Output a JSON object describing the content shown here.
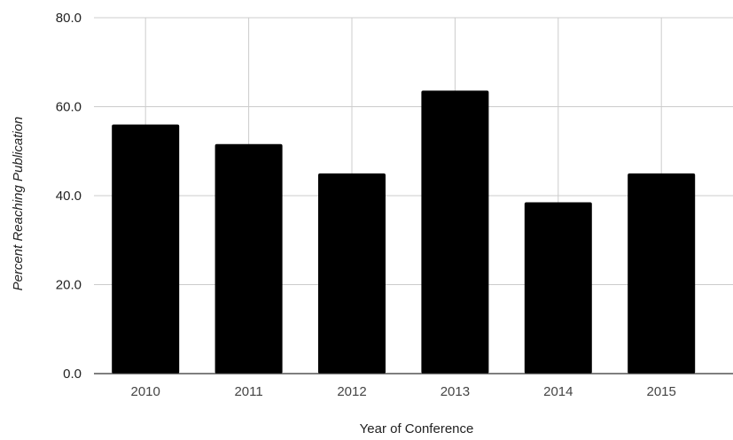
{
  "chart_data": {
    "type": "bar",
    "categories": [
      "2010",
      "2011",
      "2012",
      "2013",
      "2014",
      "2015"
    ],
    "values": [
      56.0,
      51.6,
      45.0,
      63.6,
      38.5,
      45.0
    ],
    "title": "",
    "xlabel": "Year of Conference",
    "ylabel": "Percent Reaching Publication",
    "ylim": [
      0,
      80
    ],
    "yticks": [
      "0.0",
      "20.0",
      "40.0",
      "60.0",
      "80.0"
    ],
    "ytick_values": [
      0,
      20,
      40,
      60,
      80
    ],
    "bar_color": "#000000",
    "grid": true,
    "legend": "none"
  }
}
